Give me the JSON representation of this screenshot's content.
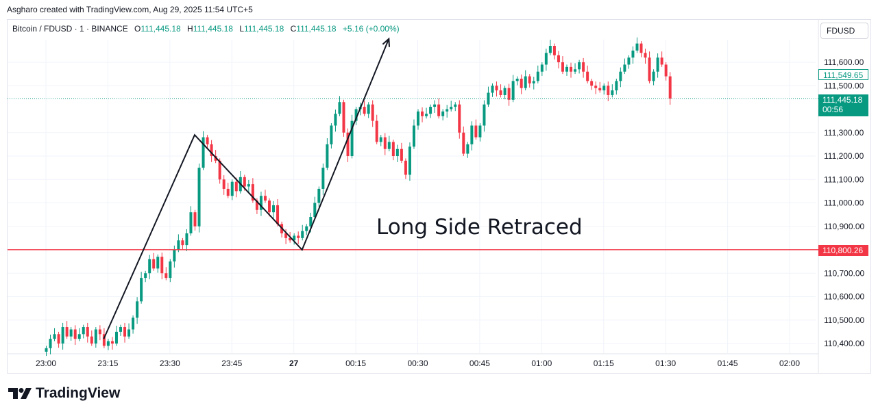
{
  "header": {
    "created_by": "Asgharo created with TradingView.com, Aug 29, 2025 11:54 UTC+5"
  },
  "legend": {
    "symbol": "Bitcoin / FDUSD · 1 · BINANCE",
    "o_label": "O",
    "o_value": "111,445.18",
    "h_label": "H",
    "h_value": "111,445.18",
    "l_label": "L",
    "l_value": "111,445.18",
    "c_label": "C",
    "c_value": "111,445.18",
    "change": "+5.16 (+0.00%)"
  },
  "currency_button": "FDUSD",
  "price_tags": {
    "last_price": "111,445.18",
    "countdown": "00:56",
    "level": "110,800.26",
    "outline": "111,549.65"
  },
  "annotation": "Long Side Retraced",
  "brand": {
    "name": "TradingView",
    "icon": "tradingview-logo-icon"
  },
  "colors": {
    "up": "#089981",
    "down": "#f23645",
    "level_line": "#f23645",
    "text": "#131722"
  },
  "chart_data": {
    "type": "candlestick",
    "title": "Bitcoin / FDUSD · 1 · BINANCE",
    "y_ticks": [
      "110,400.00",
      "110,500.00",
      "110,600.00",
      "110,700.00",
      "110,800.00",
      "110,900.00",
      "111,000.00",
      "111,100.00",
      "111,200.00",
      "111,300.00",
      "111,500.00",
      "111,600.00"
    ],
    "y_tick_values": [
      110400,
      110500,
      110600,
      110700,
      110800,
      110900,
      111000,
      111100,
      111200,
      111300,
      111500,
      111600
    ],
    "x_ticks": [
      "23:00",
      "23:15",
      "23:30",
      "23:45",
      "27",
      "00:15",
      "00:30",
      "00:45",
      "01:00",
      "01:15",
      "01:30",
      "01:45",
      "02:00"
    ],
    "x_tick_minutes": [
      0,
      15,
      30,
      45,
      60,
      75,
      90,
      105,
      120,
      135,
      150,
      165,
      180
    ],
    "ylim": [
      110350,
      111700
    ],
    "horizontal_level": 110800.26,
    "last_price": 111445.18,
    "closes": [
      110380,
      110420,
      110440,
      110400,
      110470,
      110430,
      110460,
      110420,
      110440,
      110470,
      110430,
      110400,
      110460,
      110440,
      110390,
      110410,
      110400,
      110450,
      110470,
      110430,
      110460,
      110510,
      110580,
      110680,
      110700,
      110760,
      110720,
      110770,
      110700,
      110680,
      110750,
      110800,
      110840,
      110820,
      110870,
      110960,
      110900,
      111150,
      111280,
      111250,
      111200,
      111180,
      111100,
      111060,
      111030,
      111090,
      111050,
      111110,
      111070,
      111080,
      111010,
      110970,
      111030,
      111010,
      110960,
      110990,
      110910,
      110870,
      110850,
      110840,
      110860,
      110850,
      110880,
      110900,
      110940,
      111000,
      111060,
      111150,
      111250,
      111330,
      111380,
      111430,
      111300,
      111200,
      111350,
      111400,
      111410,
      111380,
      111420,
      111350,
      111260,
      111280,
      111230,
      111260,
      111200,
      111230,
      111180,
      111120,
      111240,
      111330,
      111390,
      111370,
      111380,
      111410,
      111420,
      111370,
      111390,
      111400,
      111410,
      111420,
      111300,
      111210,
      111250,
      111330,
      111280,
      111330,
      111420,
      111470,
      111500,
      111480,
      111460,
      111490,
      111440,
      111520,
      111530,
      111490,
      111540,
      111510,
      111520,
      111560,
      111590,
      111640,
      111670,
      111630,
      111600,
      111560,
      111580,
      111560,
      111570,
      111600,
      111560,
      111520,
      111500,
      111490,
      111480,
      111500,
      111460,
      111480,
      111520,
      111560,
      111590,
      111620,
      111650,
      111680,
      111640,
      111620,
      111520,
      111560,
      111620,
      111590,
      111540,
      111445
    ]
  }
}
